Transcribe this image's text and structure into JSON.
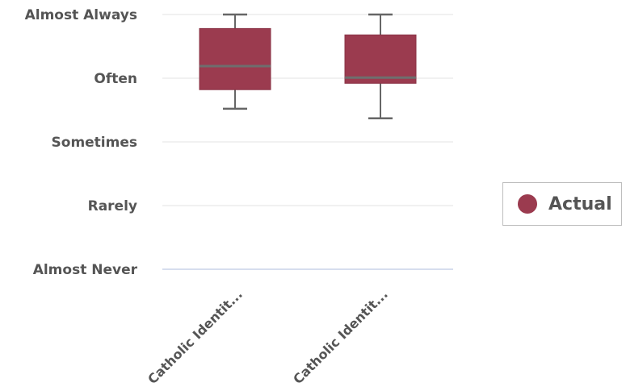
{
  "chart_data": {
    "type": "boxplot",
    "y_categories": [
      "Almost Never",
      "Rarely",
      "Sometimes",
      "Often",
      "Almost Always"
    ],
    "ylim": [
      1,
      5
    ],
    "categories": [
      "Catholic Identit...",
      "Catholic Identit..."
    ],
    "series": [
      {
        "name": "Actual",
        "boxes": [
          {
            "min": 3.52,
            "q1": 3.82,
            "median": 4.19,
            "q3": 4.78,
            "max": 5.0
          },
          {
            "min": 3.37,
            "q1": 3.92,
            "median": 4.01,
            "q3": 4.68,
            "max": 5.0
          }
        ]
      }
    ],
    "legend": {
      "position": "right"
    },
    "grid": true,
    "colors": {
      "box": "#9b3b4f",
      "whisker": "#666666",
      "grid": "#e3e3e3",
      "baseline": "#c9d3e8"
    }
  }
}
